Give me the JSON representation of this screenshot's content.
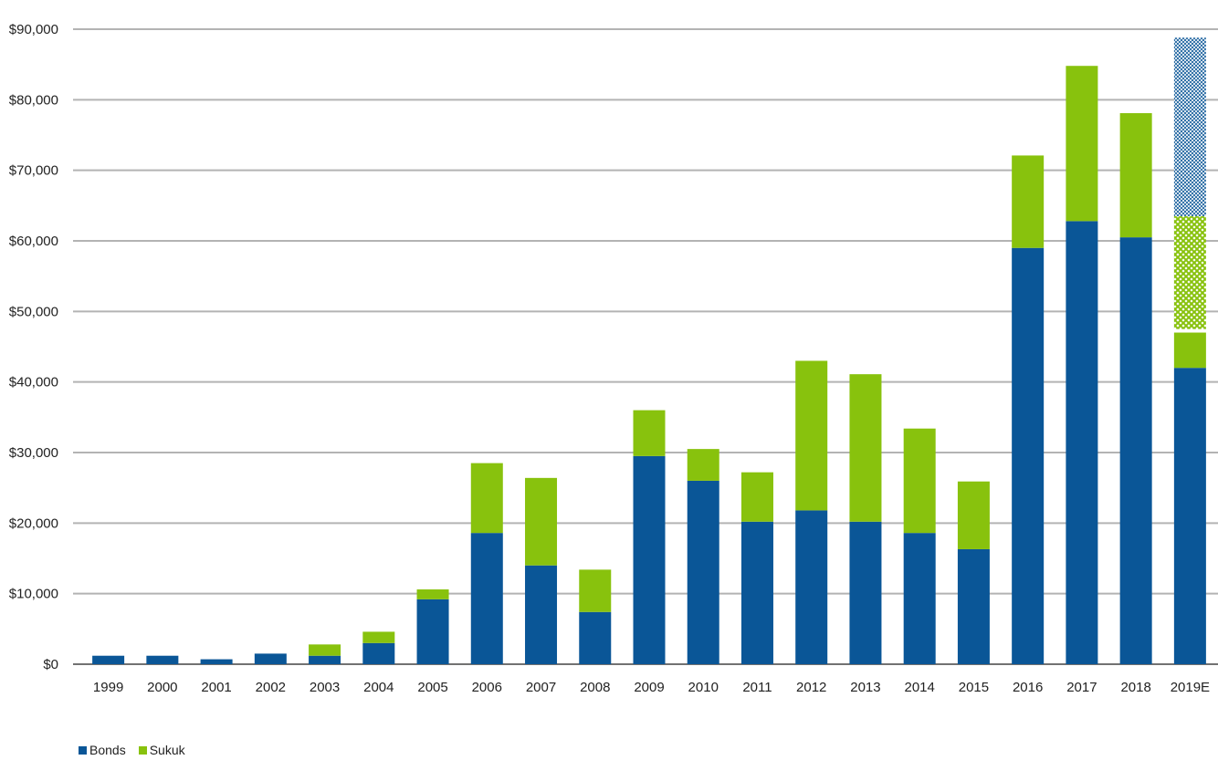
{
  "chart_data": {
    "type": "bar",
    "stacked": true,
    "categories": [
      "1999",
      "2000",
      "2001",
      "2002",
      "2003",
      "2004",
      "2005",
      "2006",
      "2007",
      "2008",
      "2009",
      "2010",
      "2011",
      "2012",
      "2013",
      "2014",
      "2015",
      "2016",
      "2017",
      "2018",
      "2019E"
    ],
    "series": [
      {
        "name": "Bonds",
        "color": "#0a5697",
        "values": [
          1200,
          1200,
          700,
          1500,
          1200,
          3000,
          9200,
          18600,
          14000,
          7400,
          29500,
          26000,
          20200,
          21800,
          20200,
          18600,
          16300,
          59000,
          62800,
          60500,
          42000
        ]
      },
      {
        "name": "Sukuk",
        "color": "#88c20d",
        "values": [
          0,
          0,
          0,
          0,
          1600,
          1600,
          1400,
          9900,
          12400,
          6000,
          6500,
          4500,
          7000,
          21200,
          20900,
          14800,
          9600,
          13100,
          22000,
          17600,
          5000
        ]
      }
    ],
    "estimate_overlay": {
      "category": "2019E",
      "segments": [
        {
          "series": "Sukuk",
          "pattern": "hatched",
          "from": 47500,
          "to": 63500
        },
        {
          "series": "Bonds",
          "pattern": "hatched",
          "from": 63500,
          "to": 88800
        }
      ]
    },
    "ylim": [
      0,
      90000
    ],
    "yticks": [
      0,
      10000,
      20000,
      30000,
      40000,
      50000,
      60000,
      70000,
      80000,
      90000
    ],
    "ytick_labels": [
      "$0",
      "$10,000",
      "$20,000",
      "$30,000",
      "$40,000",
      "$50,000",
      "$60,000",
      "$70,000",
      "$80,000",
      "$90,000"
    ],
    "grid": true,
    "legend_position": "bottom-left",
    "title": "",
    "xlabel": "",
    "ylabel": ""
  },
  "legend": {
    "bonds_label": "Bonds",
    "sukuk_label": "Sukuk"
  }
}
